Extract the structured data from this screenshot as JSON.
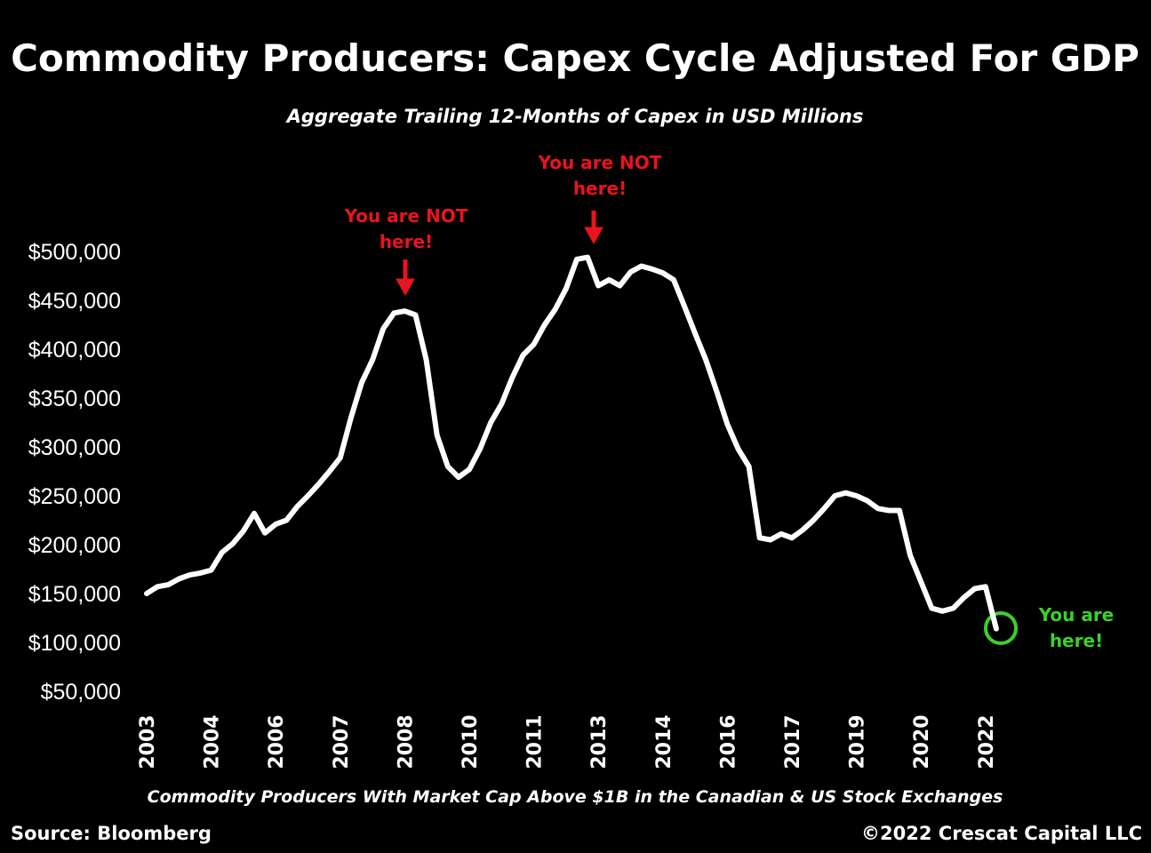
{
  "chart_data": {
    "type": "line",
    "title": "Commodity Producers: Capex Cycle Adjusted For GDP",
    "subtitle": "Aggregate Trailing 12-Months of Capex in USD Millions",
    "x_label": "Commodity Producers With Market Cap Above $1B in the Canadian & US Stock Exchanges",
    "source": "Source: Bloomberg",
    "copyright": "©2022 Crescat Capital LLC",
    "annotations": [
      {
        "lines": [
          "You are NOT",
          "here!"
        ],
        "color": "#e8141e"
      },
      {
        "lines": [
          "You are NOT",
          "here!"
        ],
        "color": "#e8141e"
      },
      {
        "lines": [
          "You are",
          "here!"
        ],
        "color": "#3ad12a"
      }
    ],
    "color": "#ffffff",
    "categories": [
      "2003",
      null,
      null,
      null,
      null,
      null,
      "2004",
      null,
      null,
      null,
      null,
      null,
      "2006",
      null,
      null,
      null,
      null,
      null,
      "2007",
      null,
      null,
      null,
      null,
      null,
      "2008",
      null,
      null,
      null,
      null,
      null,
      "2010",
      null,
      null,
      null,
      null,
      null,
      "2011",
      null,
      null,
      null,
      null,
      null,
      "2013",
      null,
      null,
      null,
      null,
      null,
      "2014",
      null,
      null,
      null,
      null,
      null,
      "2016",
      null,
      null,
      null,
      null,
      null,
      "2017",
      null,
      null,
      null,
      null,
      null,
      "2019",
      null,
      null,
      null,
      null,
      null,
      "2020",
      null,
      null,
      null,
      null,
      null,
      "2022",
      null
    ],
    "values": [
      150000,
      157000,
      159000,
      165000,
      169000,
      171000,
      174000,
      192000,
      201000,
      214000,
      232000,
      212000,
      221000,
      225000,
      239000,
      250000,
      262000,
      275000,
      289000,
      330000,
      366000,
      389000,
      421000,
      437000,
      439000,
      435000,
      389000,
      312000,
      280000,
      269000,
      277000,
      298000,
      325000,
      344000,
      371000,
      394000,
      405000,
      425000,
      441000,
      462000,
      492000,
      494000,
      465000,
      471000,
      465000,
      479000,
      485000,
      482000,
      478000,
      471000,
      444000,
      416000,
      389000,
      357000,
      323000,
      298000,
      280000,
      207000,
      205000,
      211000,
      207000,
      215000,
      225000,
      237000,
      250000,
      253000,
      250000,
      245000,
      237000,
      235000,
      235000,
      189000,
      162000,
      135000,
      132000,
      135000,
      146000,
      155000,
      157000,
      114000
    ],
    "ylim": [
      50000,
      500000
    ],
    "yticks": [
      {
        "value": 50000,
        "label": "$50,000"
      },
      {
        "value": 100000,
        "label": "$100,000"
      },
      {
        "value": 150000,
        "label": "$150,000"
      },
      {
        "value": 200000,
        "label": "$200,000"
      },
      {
        "value": 250000,
        "label": "$250,000"
      },
      {
        "value": 300000,
        "label": "$300,000"
      },
      {
        "value": 350000,
        "label": "$350,000"
      },
      {
        "value": 400000,
        "label": "$400,000"
      },
      {
        "value": 450000,
        "label": "$450,000"
      },
      {
        "value": 500000,
        "label": "$500,000"
      }
    ],
    "grid": false
  }
}
